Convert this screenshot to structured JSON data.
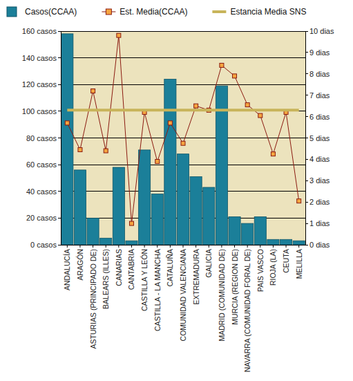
{
  "chart_data": {
    "type": "bar",
    "categories": [
      "ANDALUCÍA",
      "ARAGÓN",
      "ASTURIAS (PRINCIPADO DE)",
      "BALEARS (ILLES)",
      "CANARIAS",
      "CANTABRIA",
      "CASTILLA Y LEÓN",
      "CASTILLA - LA MANCHA",
      "CATALUÑA",
      "COMUNIDAD VALENCIANA",
      "EXTREMADURA",
      "GALICIA",
      "MADRID (COMUNIDAD DE)",
      "MURCIA (REGION DE)",
      "NAVARRA (COMUNIDAD FORAL DE)",
      "PAIS VASCO",
      "RIOJA (LA)",
      "CEUTA",
      "MELILLA"
    ],
    "series": [
      {
        "name": "Casos(CCAA)",
        "type": "bar",
        "color": "#1b7f99",
        "values": [
          158,
          56,
          20,
          5,
          58,
          3,
          71,
          38,
          124,
          68,
          51,
          43,
          119,
          21,
          16,
          21,
          4,
          4,
          3
        ]
      },
      {
        "name": "Est. Media(CCAA)",
        "type": "line",
        "axis": "y2",
        "color": "#8b1a10",
        "marker": "square",
        "values": [
          5.7,
          4.45,
          7.2,
          4.4,
          9.8,
          1.0,
          6.2,
          3.9,
          5.7,
          4.75,
          6.5,
          6.3,
          8.4,
          7.9,
          6.55,
          6.05,
          4.25,
          6.2,
          2.05
        ]
      },
      {
        "name": "Estancia Media SNS",
        "type": "line",
        "axis": "y2",
        "color": "#c8b45a",
        "values": [
          6.3,
          6.3,
          6.3,
          6.3,
          6.3,
          6.3,
          6.3,
          6.3,
          6.3,
          6.3,
          6.3,
          6.3,
          6.3,
          6.3,
          6.3,
          6.3,
          6.3,
          6.3,
          6.3
        ]
      }
    ],
    "ylim": [
      0,
      160
    ],
    "yticks": [
      {
        "value": 0,
        "label": "0 casos"
      },
      {
        "value": 20,
        "label": "20 casos"
      },
      {
        "value": 40,
        "label": "40 casos"
      },
      {
        "value": 60,
        "label": "60 casos"
      },
      {
        "value": 80,
        "label": "80 casos"
      },
      {
        "value": 100,
        "label": "100 casos"
      },
      {
        "value": 120,
        "label": "120 casos"
      },
      {
        "value": 140,
        "label": "140 casos"
      },
      {
        "value": 160,
        "label": "160 casos"
      }
    ],
    "y2lim": [
      0,
      10
    ],
    "y2ticks": [
      {
        "value": 0,
        "label": "0 dias"
      },
      {
        "value": 1,
        "label": "1 dias"
      },
      {
        "value": 2,
        "label": "2 dias"
      },
      {
        "value": 3,
        "label": "3 dias"
      },
      {
        "value": 4,
        "label": "4 dias"
      },
      {
        "value": 5,
        "label": "5 dias"
      },
      {
        "value": 6,
        "label": "6 dias"
      },
      {
        "value": 7,
        "label": "7 dias"
      },
      {
        "value": 8,
        "label": "8 dias"
      },
      {
        "value": 9,
        "label": "9 dias"
      },
      {
        "value": 10,
        "label": "10 dias"
      }
    ],
    "grid": true,
    "legend": "top"
  }
}
